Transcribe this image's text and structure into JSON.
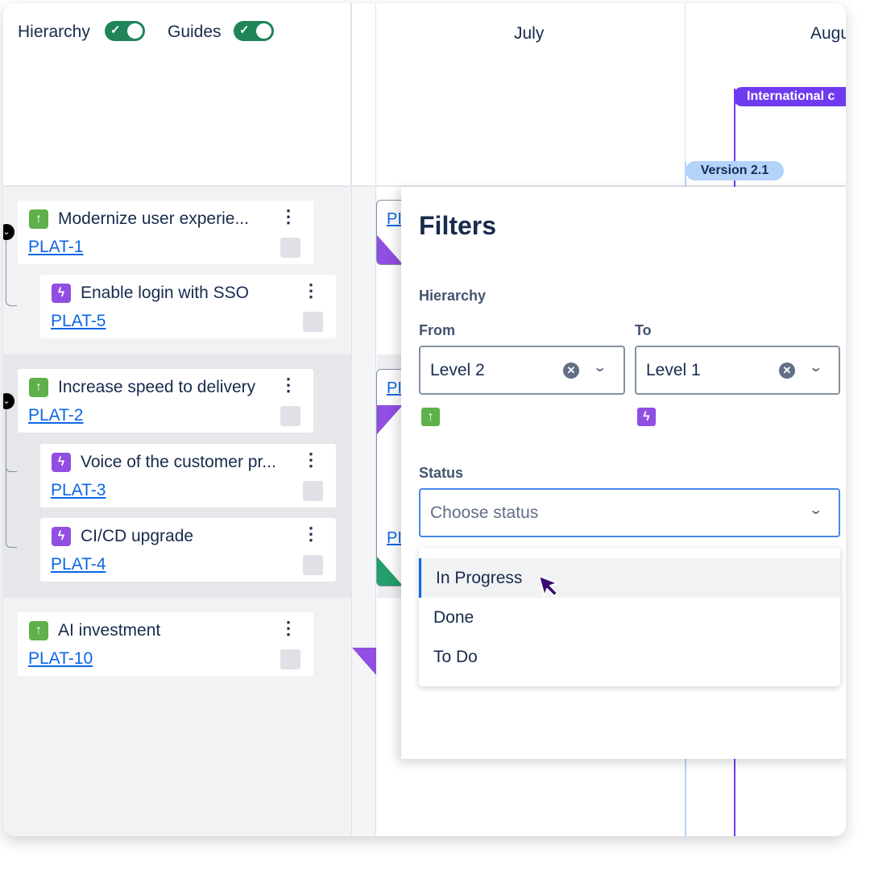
{
  "toolbar": {
    "hierarchy_label": "Hierarchy",
    "hierarchy_on": true,
    "guides_label": "Guides",
    "guides_on": true
  },
  "timeline": {
    "months": [
      "July",
      "Augu"
    ],
    "markers": [
      {
        "label": "International c",
        "color": "#6e3bf0"
      },
      {
        "label": "Version 2.1",
        "color": "#b3d3fb"
      }
    ],
    "bar_labels": [
      "PI",
      "PI",
      "PI"
    ]
  },
  "items": [
    {
      "title": "Modernize user experie...",
      "key": "PLAT-1",
      "type": "initiative-icon"
    },
    {
      "title": "Enable login with SSO",
      "key": "PLAT-5",
      "type": "epic-icon"
    },
    {
      "title": "Increase speed to delivery",
      "key": "PLAT-2",
      "type": "initiative-icon"
    },
    {
      "title": "Voice of the customer pr...",
      "key": "PLAT-3",
      "type": "epic-icon"
    },
    {
      "title": "CI/CD upgrade",
      "key": "PLAT-4",
      "type": "epic-icon"
    },
    {
      "title": "AI investment",
      "key": "PLAT-10",
      "type": "initiative-icon"
    }
  ],
  "filters": {
    "title": "Filters",
    "hierarchy_label": "Hierarchy",
    "from_label": "From",
    "from_value": "Level 2",
    "to_label": "To",
    "to_value": "Level 1",
    "status_label": "Status",
    "status_placeholder": "Choose status",
    "status_options": [
      "In Progress",
      "Done",
      "To Do"
    ],
    "highlighted_option": "In Progress"
  },
  "colors": {
    "accent": "#1f845a",
    "link": "#0c66e4",
    "focus": "#4688ec",
    "initiative": "#5fb04b",
    "epic": "#904ee2"
  }
}
